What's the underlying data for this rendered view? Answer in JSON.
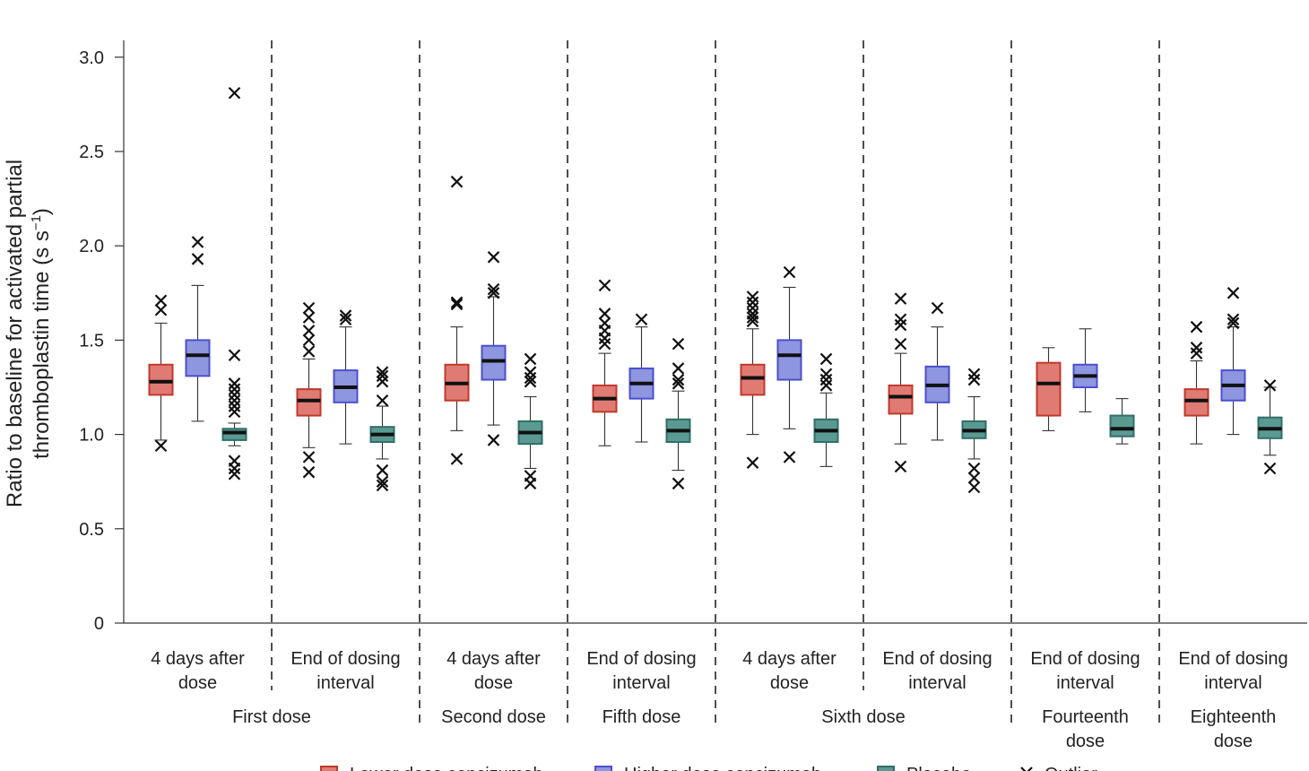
{
  "chart_data": {
    "type": "box",
    "title": "",
    "ylabel_line1": "Ratio to baseline for activated partial",
    "ylabel_line2": "thromboplastin time (s s",
    "ylabel_sup": "−1",
    "ylabel_close": ")",
    "ylim": [
      0,
      3.0
    ],
    "yticks": [
      0,
      0.5,
      1.0,
      1.5,
      2.0,
      2.5,
      3.0
    ],
    "ytick_labels": [
      "0",
      "0.5",
      "1.0",
      "1.5",
      "2.0",
      "2.5",
      "3.0"
    ],
    "series": [
      {
        "name": "Lower dose concizumab",
        "color": "#e07b74",
        "edge": "#c0392b"
      },
      {
        "name": "Higher dose concizumab",
        "color": "#8e96e0",
        "edge": "#4b4fd0"
      },
      {
        "name": "Placebo",
        "color": "#5b9a92",
        "edge": "#2f6f67"
      }
    ],
    "outlier_label": "Outlier",
    "doses": [
      {
        "label": [
          "First dose"
        ],
        "span": [
          0,
          1
        ]
      },
      {
        "label": [
          "Second dose"
        ],
        "span": [
          2,
          2
        ]
      },
      {
        "label": [
          "Fifth dose"
        ],
        "span": [
          3,
          3
        ]
      },
      {
        "label": [
          "Sixth dose"
        ],
        "span": [
          4,
          5
        ]
      },
      {
        "label": [
          "Fourteenth",
          "dose"
        ],
        "span": [
          6,
          6
        ]
      },
      {
        "label": [
          "Eighteenth",
          "dose"
        ],
        "span": [
          7,
          7
        ]
      }
    ],
    "categories": [
      {
        "label": [
          "4 days after",
          "dose"
        ],
        "boxes": [
          {
            "q1": 1.21,
            "median": 1.28,
            "q3": 1.37,
            "wlo": 0.97,
            "whi": 1.59,
            "outliers": [
              0.94,
              1.66,
              1.71
            ]
          },
          {
            "q1": 1.31,
            "median": 1.42,
            "q3": 1.5,
            "wlo": 1.07,
            "whi": 1.79,
            "outliers": [
              1.93,
              2.02
            ]
          },
          {
            "q1": 0.97,
            "median": 1.01,
            "q3": 1.03,
            "wlo": 0.94,
            "whi": 1.06,
            "outliers": [
              0.79,
              0.82,
              0.86,
              1.12,
              1.15,
              1.18,
              1.21,
              1.24,
              1.27,
              1.42,
              2.81
            ]
          }
        ]
      },
      {
        "label": [
          "End of dosing",
          "interval"
        ],
        "boxes": [
          {
            "q1": 1.1,
            "median": 1.18,
            "q3": 1.24,
            "wlo": 0.93,
            "whi": 1.4,
            "outliers": [
              0.8,
              0.88,
              1.44,
              1.5,
              1.55,
              1.62,
              1.67
            ]
          },
          {
            "q1": 1.17,
            "median": 1.25,
            "q3": 1.34,
            "wlo": 0.95,
            "whi": 1.57,
            "outliers": [
              1.61,
              1.63
            ]
          },
          {
            "q1": 0.96,
            "median": 1.0,
            "q3": 1.04,
            "wlo": 0.87,
            "whi": 1.15,
            "outliers": [
              0.73,
              0.75,
              0.81,
              1.18,
              1.28,
              1.31,
              1.33
            ]
          }
        ]
      },
      {
        "label": [
          "4 days after",
          "dose"
        ],
        "boxes": [
          {
            "q1": 1.18,
            "median": 1.27,
            "q3": 1.37,
            "wlo": 1.02,
            "whi": 1.57,
            "outliers": [
              0.87,
              1.69,
              1.7,
              2.34
            ]
          },
          {
            "q1": 1.29,
            "median": 1.39,
            "q3": 1.47,
            "wlo": 1.05,
            "whi": 1.73,
            "outliers": [
              0.97,
              1.75,
              1.77,
              1.94
            ]
          },
          {
            "q1": 0.95,
            "median": 1.01,
            "q3": 1.07,
            "wlo": 0.82,
            "whi": 1.2,
            "outliers": [
              0.74,
              0.78,
              1.28,
              1.3,
              1.33,
              1.4
            ]
          }
        ]
      },
      {
        "label": [
          "End of dosing",
          "interval"
        ],
        "boxes": [
          {
            "q1": 1.12,
            "median": 1.19,
            "q3": 1.26,
            "wlo": 0.94,
            "whi": 1.43,
            "outliers": [
              1.48,
              1.51,
              1.55,
              1.59,
              1.64,
              1.79
            ]
          },
          {
            "q1": 1.19,
            "median": 1.27,
            "q3": 1.35,
            "wlo": 0.96,
            "whi": 1.57,
            "outliers": [
              1.61
            ]
          },
          {
            "q1": 0.96,
            "median": 1.02,
            "q3": 1.08,
            "wlo": 0.81,
            "whi": 1.23,
            "outliers": [
              0.74,
              1.27,
              1.29,
              1.35,
              1.48
            ]
          }
        ]
      },
      {
        "label": [
          "4 days after",
          "dose"
        ],
        "boxes": [
          {
            "q1": 1.21,
            "median": 1.3,
            "q3": 1.37,
            "wlo": 1.0,
            "whi": 1.56,
            "outliers": [
              0.85,
              1.6,
              1.62,
              1.64,
              1.67,
              1.7,
              1.73
            ]
          },
          {
            "q1": 1.29,
            "median": 1.42,
            "q3": 1.5,
            "wlo": 1.03,
            "whi": 1.78,
            "outliers": [
              0.88,
              1.86
            ]
          },
          {
            "q1": 0.96,
            "median": 1.02,
            "q3": 1.08,
            "wlo": 0.83,
            "whi": 1.22,
            "outliers": [
              1.26,
              1.29,
              1.32,
              1.4
            ]
          }
        ]
      },
      {
        "label": [
          "End of dosing",
          "interval"
        ],
        "boxes": [
          {
            "q1": 1.11,
            "median": 1.2,
            "q3": 1.26,
            "wlo": 0.95,
            "whi": 1.43,
            "outliers": [
              0.83,
              1.48,
              1.58,
              1.61,
              1.72
            ]
          },
          {
            "q1": 1.17,
            "median": 1.26,
            "q3": 1.36,
            "wlo": 0.97,
            "whi": 1.57,
            "outliers": [
              1.67
            ]
          },
          {
            "q1": 0.98,
            "median": 1.02,
            "q3": 1.07,
            "wlo": 0.87,
            "whi": 1.2,
            "outliers": [
              0.72,
              0.77,
              0.82,
              1.29,
              1.32
            ]
          }
        ]
      },
      {
        "label": [
          "End of dosing",
          "interval"
        ],
        "boxes": [
          {
            "q1": 1.1,
            "median": 1.27,
            "q3": 1.38,
            "wlo": 1.02,
            "whi": 1.46,
            "outliers": []
          },
          {
            "q1": 1.25,
            "median": 1.31,
            "q3": 1.37,
            "wlo": 1.12,
            "whi": 1.56,
            "outliers": []
          },
          {
            "q1": 0.99,
            "median": 1.03,
            "q3": 1.1,
            "wlo": 0.95,
            "whi": 1.19,
            "outliers": []
          }
        ]
      },
      {
        "label": [
          "End of dosing",
          "interval"
        ],
        "boxes": [
          {
            "q1": 1.1,
            "median": 1.18,
            "q3": 1.24,
            "wlo": 0.95,
            "whi": 1.39,
            "outliers": [
              1.43,
              1.46,
              1.57
            ]
          },
          {
            "q1": 1.18,
            "median": 1.26,
            "q3": 1.34,
            "wlo": 1.0,
            "whi": 1.57,
            "outliers": [
              1.59,
              1.61,
              1.75
            ]
          },
          {
            "q1": 0.98,
            "median": 1.03,
            "q3": 1.09,
            "wlo": 0.89,
            "whi": 1.25,
            "outliers": [
              0.82,
              1.26
            ]
          }
        ]
      }
    ]
  }
}
